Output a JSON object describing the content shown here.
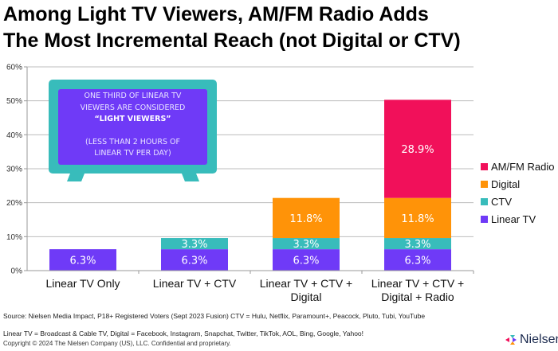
{
  "title": {
    "line1": "Among Light TV Viewers, AM/FM Radio Adds",
    "line2": "The Most Incremental Reach (not Digital or CTV)"
  },
  "callout": {
    "line1": "ONE THIRD OF LINEAR TV",
    "line2": "VIEWERS ARE CONSIDERED",
    "line3": "“LIGHT VIEWERS”",
    "line4": "(LESS THAN 2 HOURS OF",
    "line5": "LINEAR TV PER DAY)"
  },
  "footer": {
    "source": "Source: Nielsen Media Impact, P18+ Registered Voters (Sept 2023 Fusion) CTV = Hulu, Netflix, Paramount+, Peacock, Pluto, Tubi, YouTube",
    "definitions": "Linear TV = Broadcast & Cable TV, Digital = Facebook, Instagram, Snapchat, Twitter, TikTok, AOL, Bing, Google, Yahoo!",
    "copyright": "Copyright © 2024 The Nielsen Company (US), LLC. Confidential and proprietary.",
    "logo_text": "Nielsen"
  },
  "colors": {
    "linear_tv": "#6f3af7",
    "ctv": "#38bcbb",
    "digital": "#ff9308",
    "radio": "#f1105a"
  },
  "chart_data": {
    "type": "bar",
    "stacked": true,
    "title": "Among Light TV Viewers, AM/FM Radio Adds The Most Incremental Reach (not Digital or CTV)",
    "xlabel": "",
    "ylabel": "",
    "ylim": [
      0,
      60
    ],
    "yticks": [
      "0%",
      "10%",
      "20%",
      "30%",
      "40%",
      "50%",
      "60%"
    ],
    "grid": true,
    "legend_position": "right",
    "categories": [
      [
        "Linear TV Only"
      ],
      [
        "Linear TV + CTV"
      ],
      [
        "Linear TV + CTV +",
        "Digital"
      ],
      [
        "Linear TV + CTV +",
        "Digital + Radio"
      ]
    ],
    "series": [
      {
        "name": "Linear TV",
        "color": "#6f3af7",
        "values": [
          6.3,
          6.3,
          6.3,
          6.3
        ],
        "labels": [
          "6.3%",
          "6.3%",
          "6.3%",
          "6.3%"
        ]
      },
      {
        "name": "CTV",
        "color": "#38bcbb",
        "values": [
          null,
          3.3,
          3.3,
          3.3
        ],
        "labels": [
          null,
          "3.3%",
          "3.3%",
          "3.3%"
        ]
      },
      {
        "name": "Digital",
        "color": "#ff9308",
        "values": [
          null,
          null,
          11.8,
          11.8
        ],
        "labels": [
          null,
          null,
          "11.8%",
          "11.8%"
        ]
      },
      {
        "name": "AM/FM Radio",
        "color": "#f1105a",
        "values": [
          null,
          null,
          null,
          28.9
        ],
        "labels": [
          null,
          null,
          null,
          "28.9%"
        ]
      }
    ],
    "legend_order": [
      "AM/FM Radio",
      "Digital",
      "CTV",
      "Linear TV"
    ]
  }
}
